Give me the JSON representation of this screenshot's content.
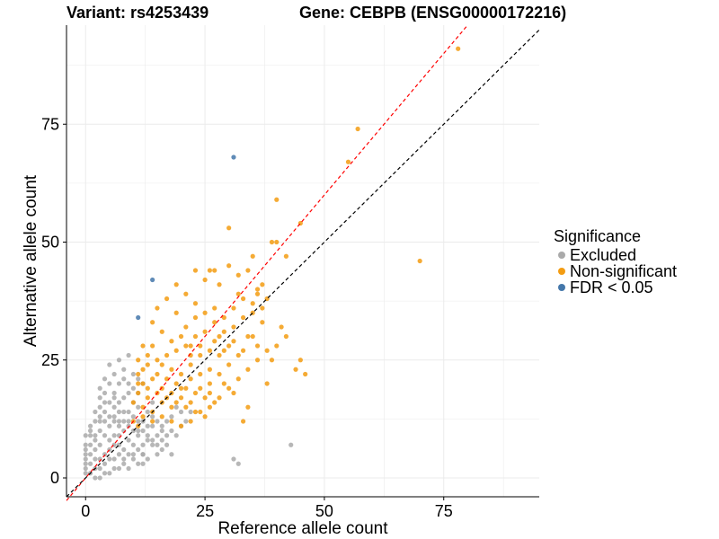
{
  "title_left": "Variant: rs4253439",
  "title_right": "Gene: CEBPB (ENSG00000172216)",
  "colors": {
    "excluded": "#aaaaaa",
    "non_significant": "#f39c12",
    "fdr": "#4477aa",
    "grid": "#ebebeb",
    "red_line": "#ff0000",
    "black_line": "#000000"
  },
  "legend": {
    "title": "Significance",
    "items": [
      {
        "label": "Excluded",
        "color": "#aaaaaa"
      },
      {
        "label": "Non-significant",
        "color": "#f39c12"
      },
      {
        "label": "FDR < 0.05",
        "color": "#4477aa"
      }
    ]
  },
  "chart_data": {
    "type": "scatter",
    "xlabel": "Reference allele count",
    "ylabel": "Alternative allele count",
    "xlim": [
      -4,
      95
    ],
    "ylim": [
      -4,
      96
    ],
    "x_ticks": [
      0,
      25,
      50,
      75
    ],
    "y_ticks": [
      0,
      25,
      50,
      75
    ],
    "reference_lines": [
      {
        "name": "red-dashed",
        "slope": 1.2,
        "intercept": 0,
        "color": "#ff0000"
      },
      {
        "name": "black-dashed",
        "slope": 1.0,
        "intercept": 0,
        "color": "#000000"
      }
    ],
    "series": [
      {
        "name": "Excluded",
        "color": "#aaaaaa",
        "points": [
          [
            43,
            7
          ],
          [
            32,
            3
          ],
          [
            31,
            4
          ],
          [
            18,
            5
          ],
          [
            15,
            5
          ],
          [
            12,
            5
          ],
          [
            16,
            6
          ],
          [
            14,
            7
          ],
          [
            13,
            8
          ],
          [
            11,
            9
          ],
          [
            10,
            10
          ],
          [
            9,
            12
          ],
          [
            8,
            14
          ],
          [
            7,
            16
          ],
          [
            6,
            18
          ],
          [
            5,
            20
          ],
          [
            6,
            22
          ],
          [
            8,
            23
          ],
          [
            7,
            25
          ],
          [
            9,
            26
          ],
          [
            5,
            24
          ],
          [
            4,
            21
          ],
          [
            3,
            17
          ],
          [
            3,
            19
          ],
          [
            4,
            14
          ],
          [
            2,
            12
          ],
          [
            1,
            10
          ],
          [
            0,
            9
          ],
          [
            0,
            7
          ],
          [
            1,
            5
          ],
          [
            0,
            4
          ],
          [
            0,
            2
          ],
          [
            1,
            1
          ],
          [
            2,
            0
          ],
          [
            4,
            1
          ],
          [
            6,
            2
          ],
          [
            8,
            3
          ],
          [
            10,
            4
          ],
          [
            11,
            6
          ],
          [
            12,
            3
          ],
          [
            13,
            4
          ],
          [
            9,
            8
          ],
          [
            10,
            7
          ],
          [
            7,
            9
          ],
          [
            5,
            11
          ],
          [
            6,
            12
          ],
          [
            4,
            9
          ],
          [
            3,
            7
          ],
          [
            2,
            6
          ],
          [
            1,
            3
          ],
          [
            3,
            2
          ],
          [
            5,
            4
          ],
          [
            7,
            5
          ],
          [
            9,
            5
          ],
          [
            8,
            6
          ],
          [
            6,
            7
          ],
          [
            4,
            5
          ],
          [
            2,
            4
          ],
          [
            3,
            4
          ],
          [
            5,
            6
          ],
          [
            7,
            7
          ],
          [
            6,
            9
          ],
          [
            8,
            10
          ],
          [
            5,
            8
          ],
          [
            3,
            10
          ],
          [
            4,
            12
          ],
          [
            6,
            13
          ],
          [
            8,
            12
          ],
          [
            7,
            11
          ],
          [
            9,
            14
          ],
          [
            10,
            13
          ],
          [
            11,
            15
          ],
          [
            12,
            12
          ],
          [
            13,
            14
          ],
          [
            14,
            16
          ],
          [
            11,
            18
          ],
          [
            12,
            20
          ],
          [
            10,
            22
          ],
          [
            9,
            18
          ],
          [
            8,
            17
          ],
          [
            7,
            14
          ],
          [
            6,
            15
          ],
          [
            5,
            16
          ],
          [
            4,
            18
          ],
          [
            10,
            16
          ],
          [
            11,
            12
          ],
          [
            12,
            10
          ],
          [
            13,
            9
          ],
          [
            14,
            11
          ],
          [
            15,
            9
          ],
          [
            16,
            8
          ],
          [
            17,
            9
          ],
          [
            16,
            10
          ],
          [
            14,
            13
          ],
          [
            13,
            11
          ],
          [
            15,
            12
          ],
          [
            2,
            8
          ],
          [
            1,
            7
          ],
          [
            2,
            9
          ],
          [
            3,
            13
          ],
          [
            1,
            11
          ],
          [
            0,
            5
          ],
          [
            0,
            3
          ],
          [
            2,
            2
          ],
          [
            4,
            3
          ],
          [
            6,
            4
          ],
          [
            8,
            4
          ],
          [
            10,
            5
          ],
          [
            12,
            7
          ],
          [
            11,
            10
          ],
          [
            9,
            11
          ],
          [
            7,
            12
          ],
          [
            5,
            13
          ],
          [
            3,
            15
          ],
          [
            2,
            14
          ],
          [
            4,
            16
          ],
          [
            9,
            20
          ],
          [
            8,
            21
          ],
          [
            10,
            19
          ],
          [
            11,
            21
          ],
          [
            7,
            20
          ],
          [
            6,
            17
          ],
          [
            3,
            12
          ],
          [
            1,
            9
          ],
          [
            0,
            6
          ],
          [
            0,
            1
          ],
          [
            3,
            0
          ],
          [
            5,
            1
          ],
          [
            7,
            2
          ],
          [
            9,
            2
          ],
          [
            11,
            3
          ],
          [
            12,
            5
          ],
          [
            14,
            8
          ],
          [
            15,
            7
          ],
          [
            16,
            11
          ],
          [
            17,
            12
          ],
          [
            18,
            10
          ],
          [
            17,
            7
          ],
          [
            19,
            9
          ],
          [
            18,
            13
          ],
          [
            20,
            11
          ],
          [
            21,
            12
          ],
          [
            20,
            14
          ],
          [
            19,
            15
          ],
          [
            22,
            14
          ]
        ]
      },
      {
        "name": "Non-significant",
        "color": "#f39c12",
        "points": [
          [
            78,
            91
          ],
          [
            57,
            74
          ],
          [
            55,
            67
          ],
          [
            70,
            46
          ],
          [
            40,
            59
          ],
          [
            45,
            54
          ],
          [
            30,
            53
          ],
          [
            39,
            50
          ],
          [
            40,
            50
          ],
          [
            42,
            47
          ],
          [
            35,
            47
          ],
          [
            30,
            45
          ],
          [
            27,
            44
          ],
          [
            23,
            44
          ],
          [
            25,
            42
          ],
          [
            26,
            44
          ],
          [
            28,
            41
          ],
          [
            34,
            44
          ],
          [
            32,
            43
          ],
          [
            32,
            39
          ],
          [
            35,
            37
          ],
          [
            36,
            39
          ],
          [
            37,
            41
          ],
          [
            38,
            27
          ],
          [
            39,
            25
          ],
          [
            40,
            28
          ],
          [
            41,
            32
          ],
          [
            42,
            30
          ],
          [
            45,
            25
          ],
          [
            44,
            23
          ],
          [
            46,
            22
          ],
          [
            38,
            20
          ],
          [
            33,
            12
          ],
          [
            34,
            15
          ],
          [
            31,
            18
          ],
          [
            29,
            20
          ],
          [
            26,
            23
          ],
          [
            24,
            26
          ],
          [
            22,
            28
          ],
          [
            20,
            30
          ],
          [
            21,
            32
          ],
          [
            23,
            34
          ],
          [
            19,
            35
          ],
          [
            17,
            38
          ],
          [
            15,
            36
          ],
          [
            14,
            33
          ],
          [
            16,
            31
          ],
          [
            18,
            29
          ],
          [
            12,
            28
          ],
          [
            11,
            25
          ],
          [
            13,
            24
          ],
          [
            15,
            22
          ],
          [
            17,
            21
          ],
          [
            19,
            20
          ],
          [
            21,
            19
          ],
          [
            23,
            18
          ],
          [
            25,
            17
          ],
          [
            27,
            16
          ],
          [
            24,
            14
          ],
          [
            22,
            12
          ],
          [
            20,
            11
          ],
          [
            18,
            12
          ],
          [
            16,
            13
          ],
          [
            14,
            14
          ],
          [
            12,
            15
          ],
          [
            10,
            16
          ],
          [
            11,
            18
          ],
          [
            13,
            19
          ],
          [
            15,
            18
          ],
          [
            17,
            17
          ],
          [
            19,
            16
          ],
          [
            21,
            15
          ],
          [
            23,
            14
          ],
          [
            25,
            13
          ],
          [
            26,
            15
          ],
          [
            28,
            17
          ],
          [
            30,
            19
          ],
          [
            32,
            21
          ],
          [
            34,
            23
          ],
          [
            36,
            25
          ],
          [
            33,
            27
          ],
          [
            31,
            29
          ],
          [
            29,
            31
          ],
          [
            27,
            33
          ],
          [
            25,
            35
          ],
          [
            23,
            37
          ],
          [
            21,
            39
          ],
          [
            19,
            41
          ],
          [
            22,
            24
          ],
          [
            24,
            22
          ],
          [
            26,
            20
          ],
          [
            28,
            22
          ],
          [
            30,
            24
          ],
          [
            32,
            26
          ],
          [
            29,
            27
          ],
          [
            27,
            29
          ],
          [
            25,
            31
          ],
          [
            23,
            30
          ],
          [
            21,
            28
          ],
          [
            19,
            27
          ],
          [
            17,
            26
          ],
          [
            15,
            25
          ],
          [
            13,
            26
          ],
          [
            11,
            22
          ],
          [
            12,
            20
          ],
          [
            14,
            21
          ],
          [
            16,
            19
          ],
          [
            18,
            18
          ],
          [
            20,
            17
          ],
          [
            22,
            16
          ],
          [
            24,
            19
          ],
          [
            26,
            18
          ],
          [
            28,
            26
          ],
          [
            31,
            32
          ],
          [
            33,
            34
          ],
          [
            35,
            30
          ],
          [
            37,
            33
          ],
          [
            36,
            28
          ],
          [
            34,
            30
          ],
          [
            13,
            17
          ],
          [
            12,
            23
          ],
          [
            14,
            28
          ],
          [
            16,
            24
          ],
          [
            18,
            23
          ],
          [
            20,
            22
          ],
          [
            22,
            21
          ],
          [
            11,
            20
          ],
          [
            10,
            12
          ],
          [
            11,
            11
          ],
          [
            12,
            13
          ],
          [
            14,
            12
          ],
          [
            16,
            16
          ],
          [
            18,
            15
          ],
          [
            20,
            19
          ],
          [
            22,
            26
          ],
          [
            24,
            28
          ],
          [
            26,
            27
          ],
          [
            28,
            30
          ],
          [
            30,
            28
          ],
          [
            29,
            34
          ],
          [
            27,
            36
          ],
          [
            31,
            36
          ],
          [
            33,
            38
          ],
          [
            35,
            35
          ],
          [
            37,
            36
          ],
          [
            38,
            38
          ],
          [
            36,
            40
          ]
        ]
      },
      {
        "name": "FDR < 0.05",
        "color": "#4477aa",
        "points": [
          [
            31,
            68
          ],
          [
            14,
            42
          ],
          [
            11,
            34
          ]
        ]
      }
    ]
  }
}
